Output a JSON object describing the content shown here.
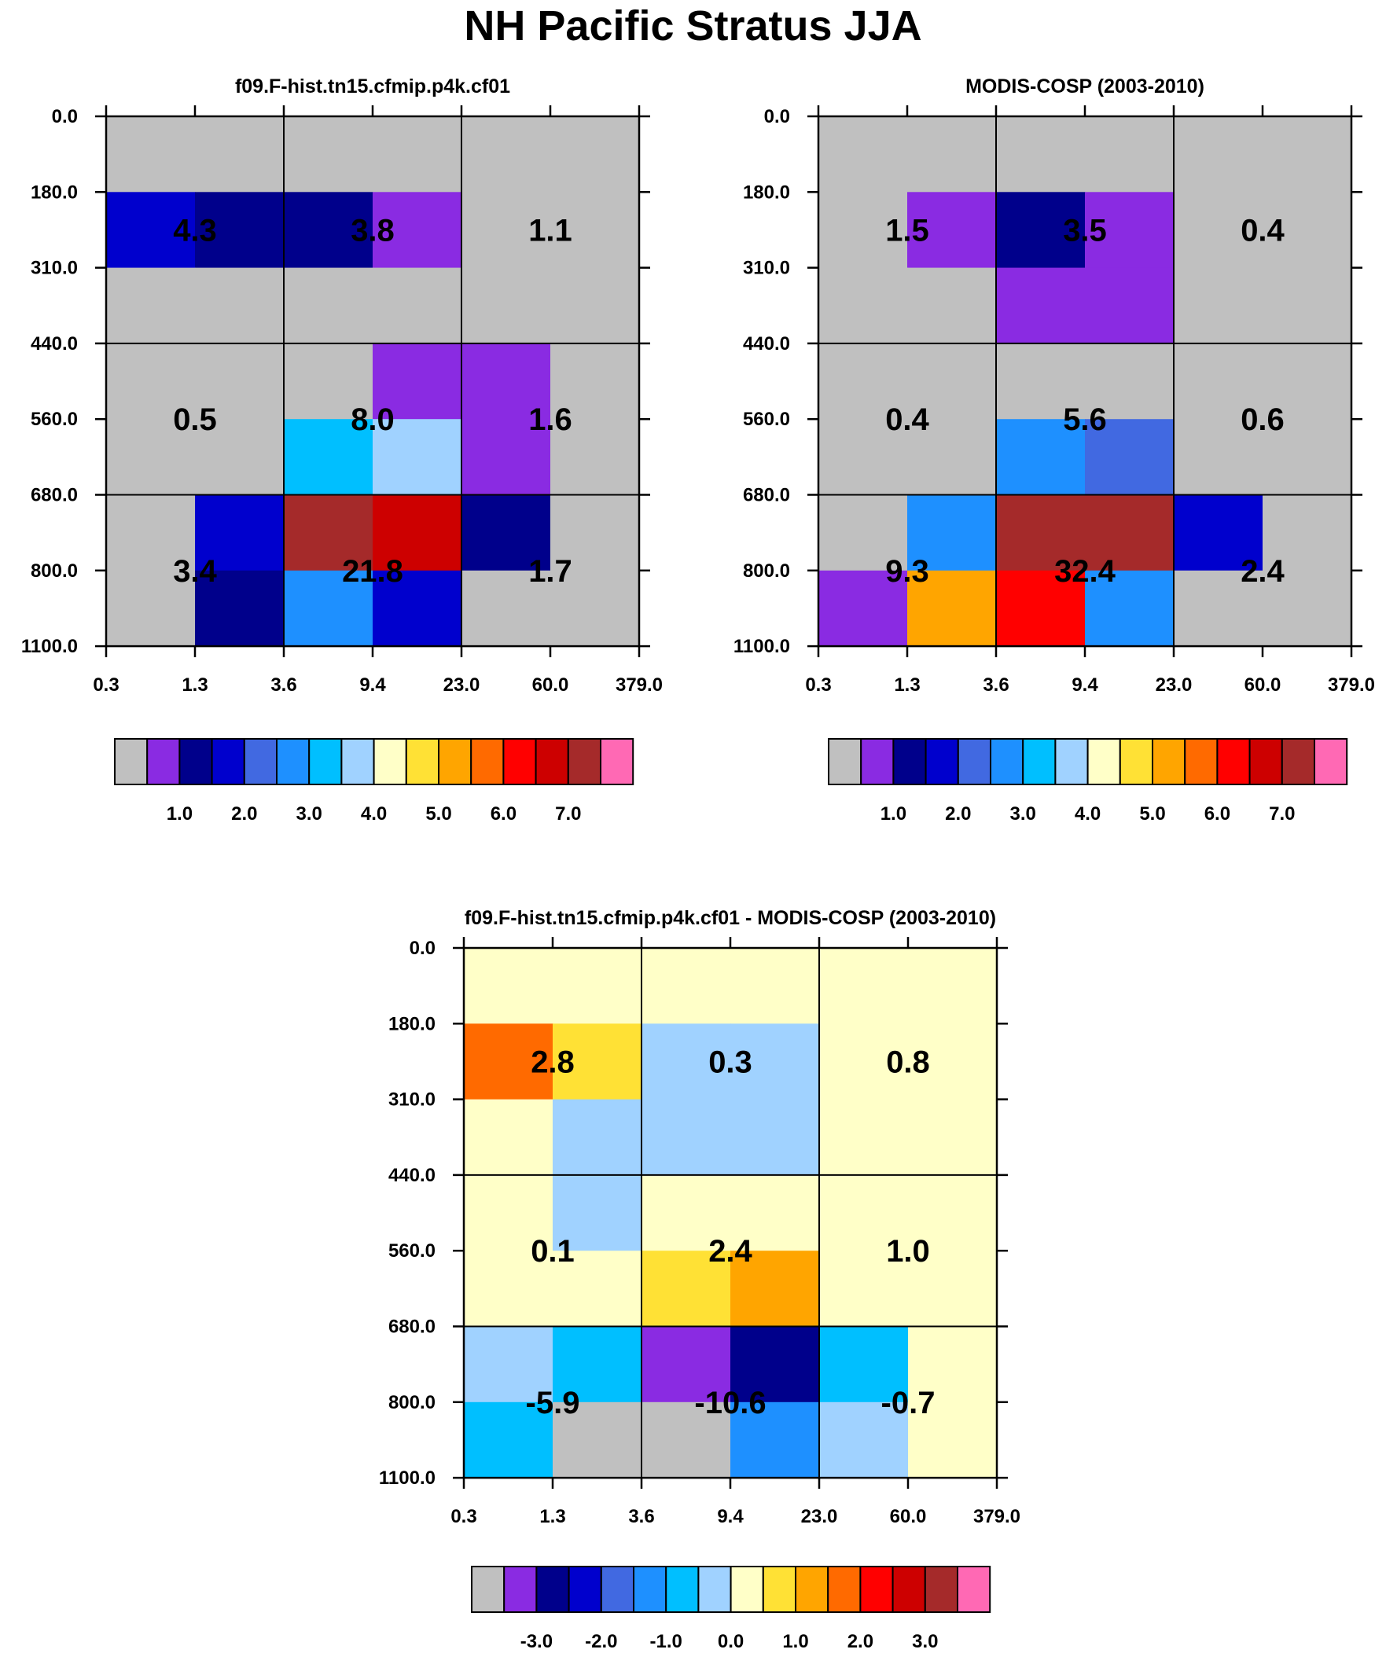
{
  "title": "NH Pacific Stratus JJA",
  "chart_data": {
    "type": "heatmap",
    "axes": {
      "y_ticks": [
        "0.0",
        "180.0",
        "310.0",
        "440.0",
        "560.0",
        "680.0",
        "800.0",
        "1100.0"
      ],
      "x_ticks": [
        "0.3",
        "1.3",
        "3.6",
        "9.4",
        "23.0",
        "60.0",
        "379.0"
      ]
    },
    "panels": [
      {
        "id": "model",
        "title": "f09.F-hist.tn15.cfmip.p4k.cf01",
        "grid": [
          [
            0,
            0,
            0,
            0,
            0,
            0
          ],
          [
            3,
            2,
            2,
            1,
            0,
            0
          ],
          [
            0,
            0,
            0,
            0,
            0,
            0
          ],
          [
            0,
            0,
            0,
            1,
            1,
            0
          ],
          [
            0,
            0,
            6,
            7,
            1,
            0
          ],
          [
            0,
            3,
            14,
            13,
            2,
            0
          ],
          [
            0,
            2,
            5,
            3,
            0,
            0
          ]
        ],
        "box_values": [
          [
            "4.3",
            "3.8",
            "1.1"
          ],
          [
            "0.5",
            "8.0",
            "1.6"
          ],
          [
            "3.4",
            "21.8",
            "1.7"
          ]
        ],
        "colorbar_labels": [
          "1.0",
          "2.0",
          "3.0",
          "4.0",
          "5.0",
          "6.0",
          "7.0"
        ]
      },
      {
        "id": "obs",
        "title": "MODIS-COSP (2003-2010)",
        "grid": [
          [
            0,
            0,
            0,
            0,
            0,
            0
          ],
          [
            0,
            1,
            2,
            1,
            0,
            0
          ],
          [
            0,
            0,
            1,
            1,
            0,
            0
          ],
          [
            0,
            0,
            0,
            0,
            0,
            0
          ],
          [
            0,
            0,
            5,
            4,
            0,
            0
          ],
          [
            0,
            5,
            14,
            14,
            3,
            0
          ],
          [
            1,
            10,
            12,
            5,
            0,
            0
          ]
        ],
        "box_values": [
          [
            "1.5",
            "3.5",
            "0.4"
          ],
          [
            "0.4",
            "5.6",
            "0.6"
          ],
          [
            "9.3",
            "32.4",
            "2.4"
          ]
        ],
        "colorbar_labels": [
          "1.0",
          "2.0",
          "3.0",
          "4.0",
          "5.0",
          "6.0",
          "7.0"
        ]
      },
      {
        "id": "diff",
        "title": "f09.F-hist.tn15.cfmip.p4k.cf01 - MODIS-COSP (2003-2010)",
        "grid": [
          [
            8,
            8,
            8,
            8,
            8,
            8
          ],
          [
            11,
            9,
            7,
            7,
            8,
            8
          ],
          [
            8,
            7,
            7,
            7,
            8,
            8
          ],
          [
            8,
            7,
            8,
            8,
            8,
            8
          ],
          [
            8,
            8,
            9,
            10,
            8,
            8
          ],
          [
            7,
            6,
            1,
            2,
            6,
            8
          ],
          [
            6,
            0,
            0,
            5,
            7,
            8
          ]
        ],
        "box_values": [
          [
            "2.8",
            "0.3",
            "0.8"
          ],
          [
            "0.1",
            "2.4",
            "1.0"
          ],
          [
            "-5.9",
            "-10.6",
            "-0.7"
          ]
        ],
        "colorbar_labels": [
          "-3.0",
          "-2.0",
          "-1.0",
          "0.0",
          "1.0",
          "2.0",
          "3.0"
        ]
      }
    ],
    "palette": [
      "#c0c0c0",
      "#8a2be2",
      "#00008b",
      "#0000cd",
      "#4169e1",
      "#1e90ff",
      "#00bfff",
      "#a0d2ff",
      "#ffffc8",
      "#ffe135",
      "#ffa500",
      "#ff6a00",
      "#ff0000",
      "#cd0000",
      "#a52a2a",
      "#ff69b4"
    ]
  }
}
